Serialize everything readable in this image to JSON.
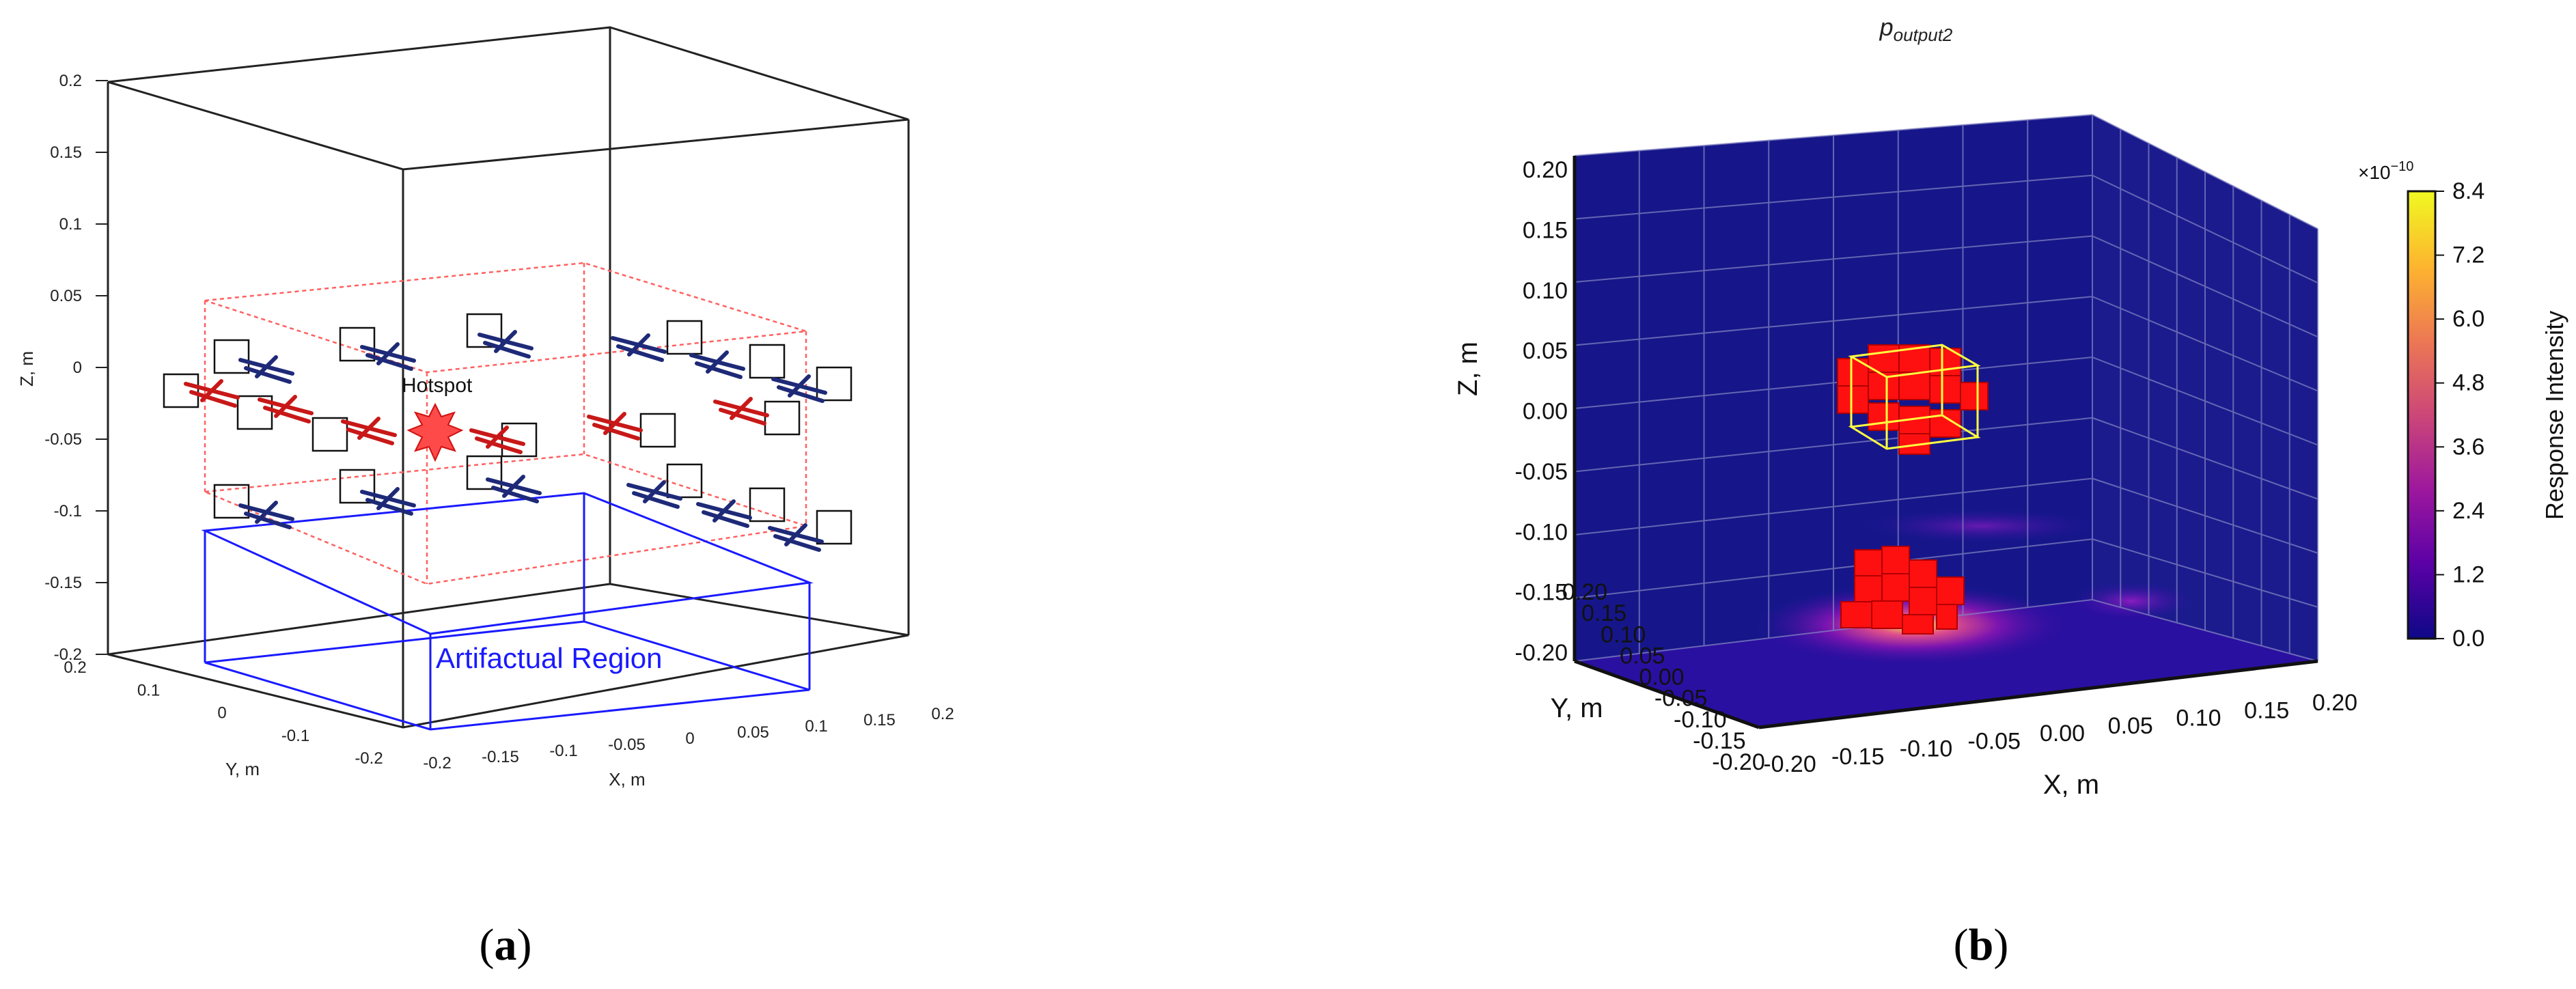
{
  "panel_a": {
    "label_open": "(",
    "label_letter": "a",
    "label_close": ")",
    "zlabel": "Z, m",
    "xlabel": "X, m",
    "ylabel": "Y, m",
    "z_ticks": [
      "0.2",
      "0.15",
      "0.1",
      "0.05",
      "0",
      "-0.05",
      "-0.1",
      "-0.15",
      "-0.2"
    ],
    "x_ticks": [
      "-0.2",
      "-0.15",
      "-0.1",
      "-0.05",
      "0",
      "0.05",
      "0.1",
      "0.15",
      "0.2"
    ],
    "y_ticks": [
      "0.2",
      "0.1",
      "0",
      "-0.1",
      "-0.2"
    ],
    "hotspot_label": "Hotspot",
    "artifact_label": "Artifactual Region",
    "colors": {
      "red_element": "#c81818",
      "blue_element": "#1e2a78",
      "artifact_box": "#1a1aff",
      "roi_box": "#ff6060"
    }
  },
  "panel_b": {
    "label_open": "(",
    "label_letter": "b",
    "label_close": ")",
    "title_main": "p",
    "title_sub": "output2",
    "zlabel": "Z, m",
    "xlabel": "X, m",
    "ylabel": "Y, m",
    "z_ticks": [
      "0.20",
      "0.15",
      "0.10",
      "0.05",
      "0.00",
      "-0.05",
      "-0.10",
      "-0.15",
      "-0.20"
    ],
    "x_ticks": [
      "-0.20",
      "-0.15",
      "-0.10",
      "-0.05",
      "0.00",
      "0.05",
      "0.10",
      "0.15",
      "0.20"
    ],
    "y_ticks": [
      "0.20",
      "0.15",
      "0.10",
      "0.05",
      "0.00",
      "-0.05",
      "-0.10",
      "-0.15",
      "-0.20"
    ],
    "colorbar": {
      "label": "Response Intensity",
      "exponent_base": "×10",
      "exponent_power": "−10",
      "ticks": [
        "8.4",
        "7.2",
        "6.0",
        "4.8",
        "3.6",
        "2.4",
        "1.2",
        "0.0"
      ],
      "colormap": [
        "#0d0887",
        "#5c01a6",
        "#9c179e",
        "#cc4778",
        "#ed7953",
        "#fdb42f",
        "#f0f921"
      ]
    },
    "colors": {
      "background_wall": "#16168a",
      "voxel": "#ff1010",
      "roi_box": "#ffff40"
    }
  }
}
